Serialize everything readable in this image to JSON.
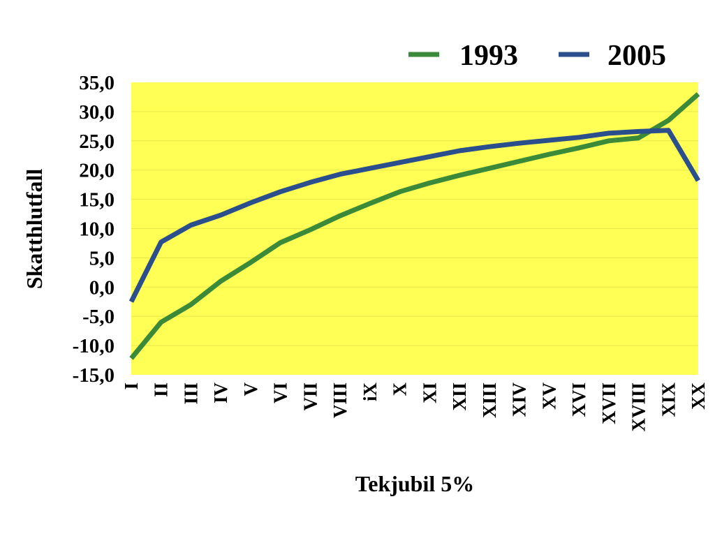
{
  "chart_data": {
    "type": "line",
    "title": "",
    "xlabel": "Tekjubil 5%",
    "ylabel": "Skatthlutfall",
    "ylim": [
      -15,
      35
    ],
    "y_ticks": [
      "35,0",
      "30,0",
      "25,0",
      "20,0",
      "15,0",
      "10,0",
      "5,0",
      "0,0",
      "-5,0",
      "-10,0",
      "-15,0"
    ],
    "categories": [
      "I",
      "II",
      "III",
      "IV",
      "V",
      "VI",
      "VII",
      "VIII",
      "iX",
      "X",
      "XI",
      "XII",
      "XIII",
      "XIV",
      "XV",
      "XVI",
      "XVII",
      "XVIII",
      "XIX",
      "XX"
    ],
    "legend_position": "top-right",
    "grid": true,
    "plot_background": "#FFFF55",
    "series": [
      {
        "name": "1993",
        "color": "#3A8A3A",
        "values": [
          -12.2,
          -6.0,
          -3.0,
          1.0,
          4.2,
          7.6,
          9.8,
          12.2,
          14.3,
          16.3,
          17.8,
          19.1,
          20.3,
          21.5,
          22.7,
          23.8,
          25.0,
          25.5,
          28.5,
          33.0
        ]
      },
      {
        "name": "2005",
        "color": "#2B4F8C",
        "values": [
          -2.5,
          7.7,
          10.6,
          12.3,
          14.4,
          16.3,
          17.9,
          19.3,
          20.3,
          21.3,
          22.3,
          23.3,
          24.0,
          24.6,
          25.1,
          25.6,
          26.3,
          26.6,
          26.8,
          18.2
        ]
      }
    ]
  }
}
